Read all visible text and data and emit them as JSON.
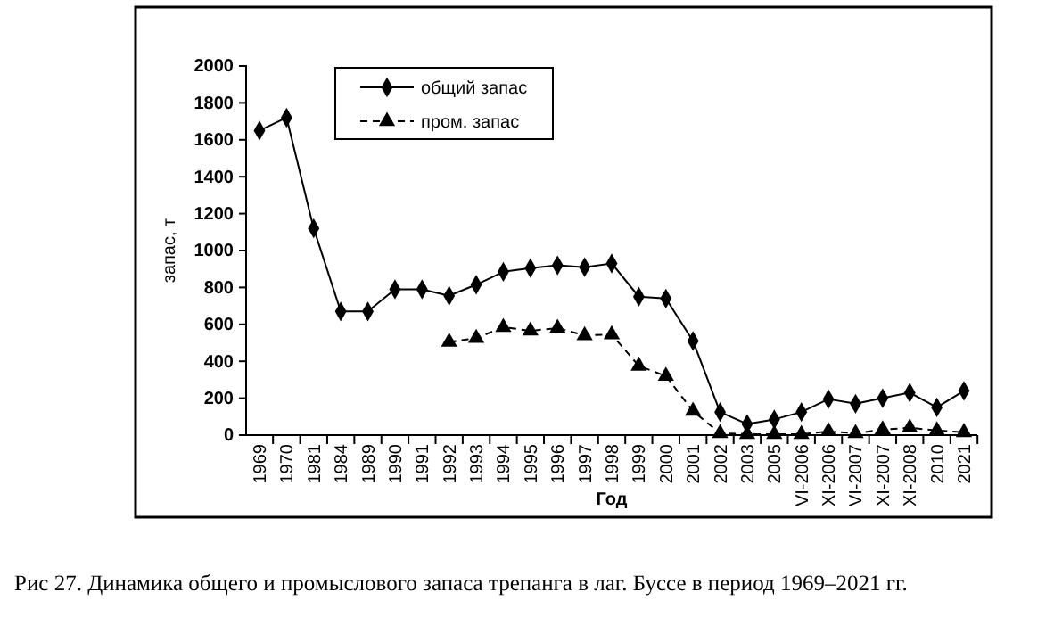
{
  "chart_data": {
    "type": "line",
    "xlabel": "Год",
    "ylabel": "запас, т",
    "categories": [
      "1969",
      "1970",
      "1981",
      "1984",
      "1989",
      "1990",
      "1991",
      "1992",
      "1993",
      "1994",
      "1995",
      "1996",
      "1997",
      "1998",
      "1999",
      "2000",
      "2001",
      "2002",
      "2003",
      "2005",
      "VI-2006",
      "XI-2006",
      "VI-2007",
      "XI-2007",
      "XI-2008",
      "2010",
      "2021"
    ],
    "series": [
      {
        "name": "общий запас",
        "color": "#000000",
        "marker": "diamond",
        "line_style": "solid",
        "values": [
          1650,
          1720,
          1120,
          670,
          670,
          790,
          790,
          755,
          815,
          885,
          905,
          920,
          910,
          930,
          750,
          740,
          510,
          125,
          60,
          85,
          125,
          195,
          170,
          200,
          230,
          150,
          240
        ]
      },
      {
        "name": "пром. запас",
        "color": "#000000",
        "marker": "triangle",
        "line_style": "dashed",
        "values": [
          null,
          null,
          null,
          null,
          null,
          null,
          null,
          505,
          525,
          585,
          565,
          580,
          540,
          545,
          375,
          320,
          130,
          10,
          5,
          5,
          5,
          20,
          10,
          30,
          40,
          25,
          15
        ]
      }
    ],
    "ylim": [
      0,
      2000
    ],
    "yticks": [
      0,
      200,
      400,
      600,
      800,
      1000,
      1200,
      1400,
      1600,
      1800,
      2000
    ],
    "grid": false,
    "legend": "top left",
    "annotations": [
      "Рис 27.  Динамика общего и промыслового запаса трепанга в лаг. Буссе в период 1969–2021 гг."
    ]
  }
}
